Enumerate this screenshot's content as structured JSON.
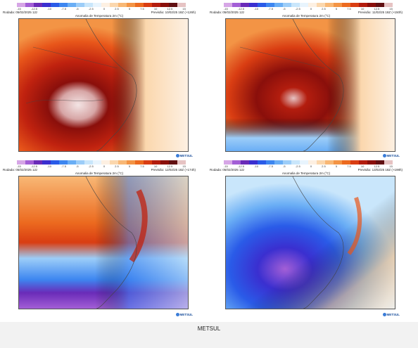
{
  "caption": "METSUL",
  "colorbar": {
    "colors": [
      "#d6a6e6",
      "#a35fd6",
      "#6a2bb8",
      "#3a2fd0",
      "#2a5be8",
      "#3d86f0",
      "#6aaef5",
      "#9ccdf8",
      "#c9e6fb",
      "#e8f4fd",
      "#fdf0e2",
      "#fbd7ad",
      "#f8b876",
      "#f39445",
      "#ec6a1f",
      "#d93d12",
      "#b31d0e",
      "#8a0f0b",
      "#611012",
      "#e6c3c3"
    ],
    "labels": [
      "-15",
      "-12.5",
      "-10",
      "-7.5",
      "-5",
      "-2.5",
      "0",
      "2.5",
      "5",
      "7.5",
      "10",
      "12.5",
      "15"
    ]
  },
  "panels": [
    {
      "run": "Rodada: 05/02/2025 12z",
      "title": "Anomalia de Temperatura 2m (°C)",
      "model": "Modelo: GFS 0.25",
      "valid": "Previsão: 10/02/25 18Z (+126h)",
      "logo": "METSUL",
      "scheme": "heat1"
    },
    {
      "run": "Rodada: 05/02/2025 12z",
      "title": "Anomalia de Temperatura 2m (°C)",
      "model": "Modelo: GFS 0.25",
      "valid": "Previsão: 11/02/25 18Z (+150h)",
      "logo": "METSUL",
      "scheme": "heat2"
    },
    {
      "run": "Rodada: 05/02/2025 12z",
      "title": "Anomalia de Temperatura 2m (°C)",
      "model": "Modelo: GFS 0.25",
      "valid": "Previsão: 12/02/25 18Z (+174h)",
      "logo": "METSUL",
      "scheme": "mix"
    },
    {
      "run": "Rodada: 05/02/2025 12z",
      "title": "Anomalia de Temperatura 2m (°C)",
      "model": "Modelo: GFS 0.25",
      "valid": "Previsão: 13/02/25 18Z (+198h)",
      "logo": "METSUL",
      "scheme": "cold"
    }
  ]
}
